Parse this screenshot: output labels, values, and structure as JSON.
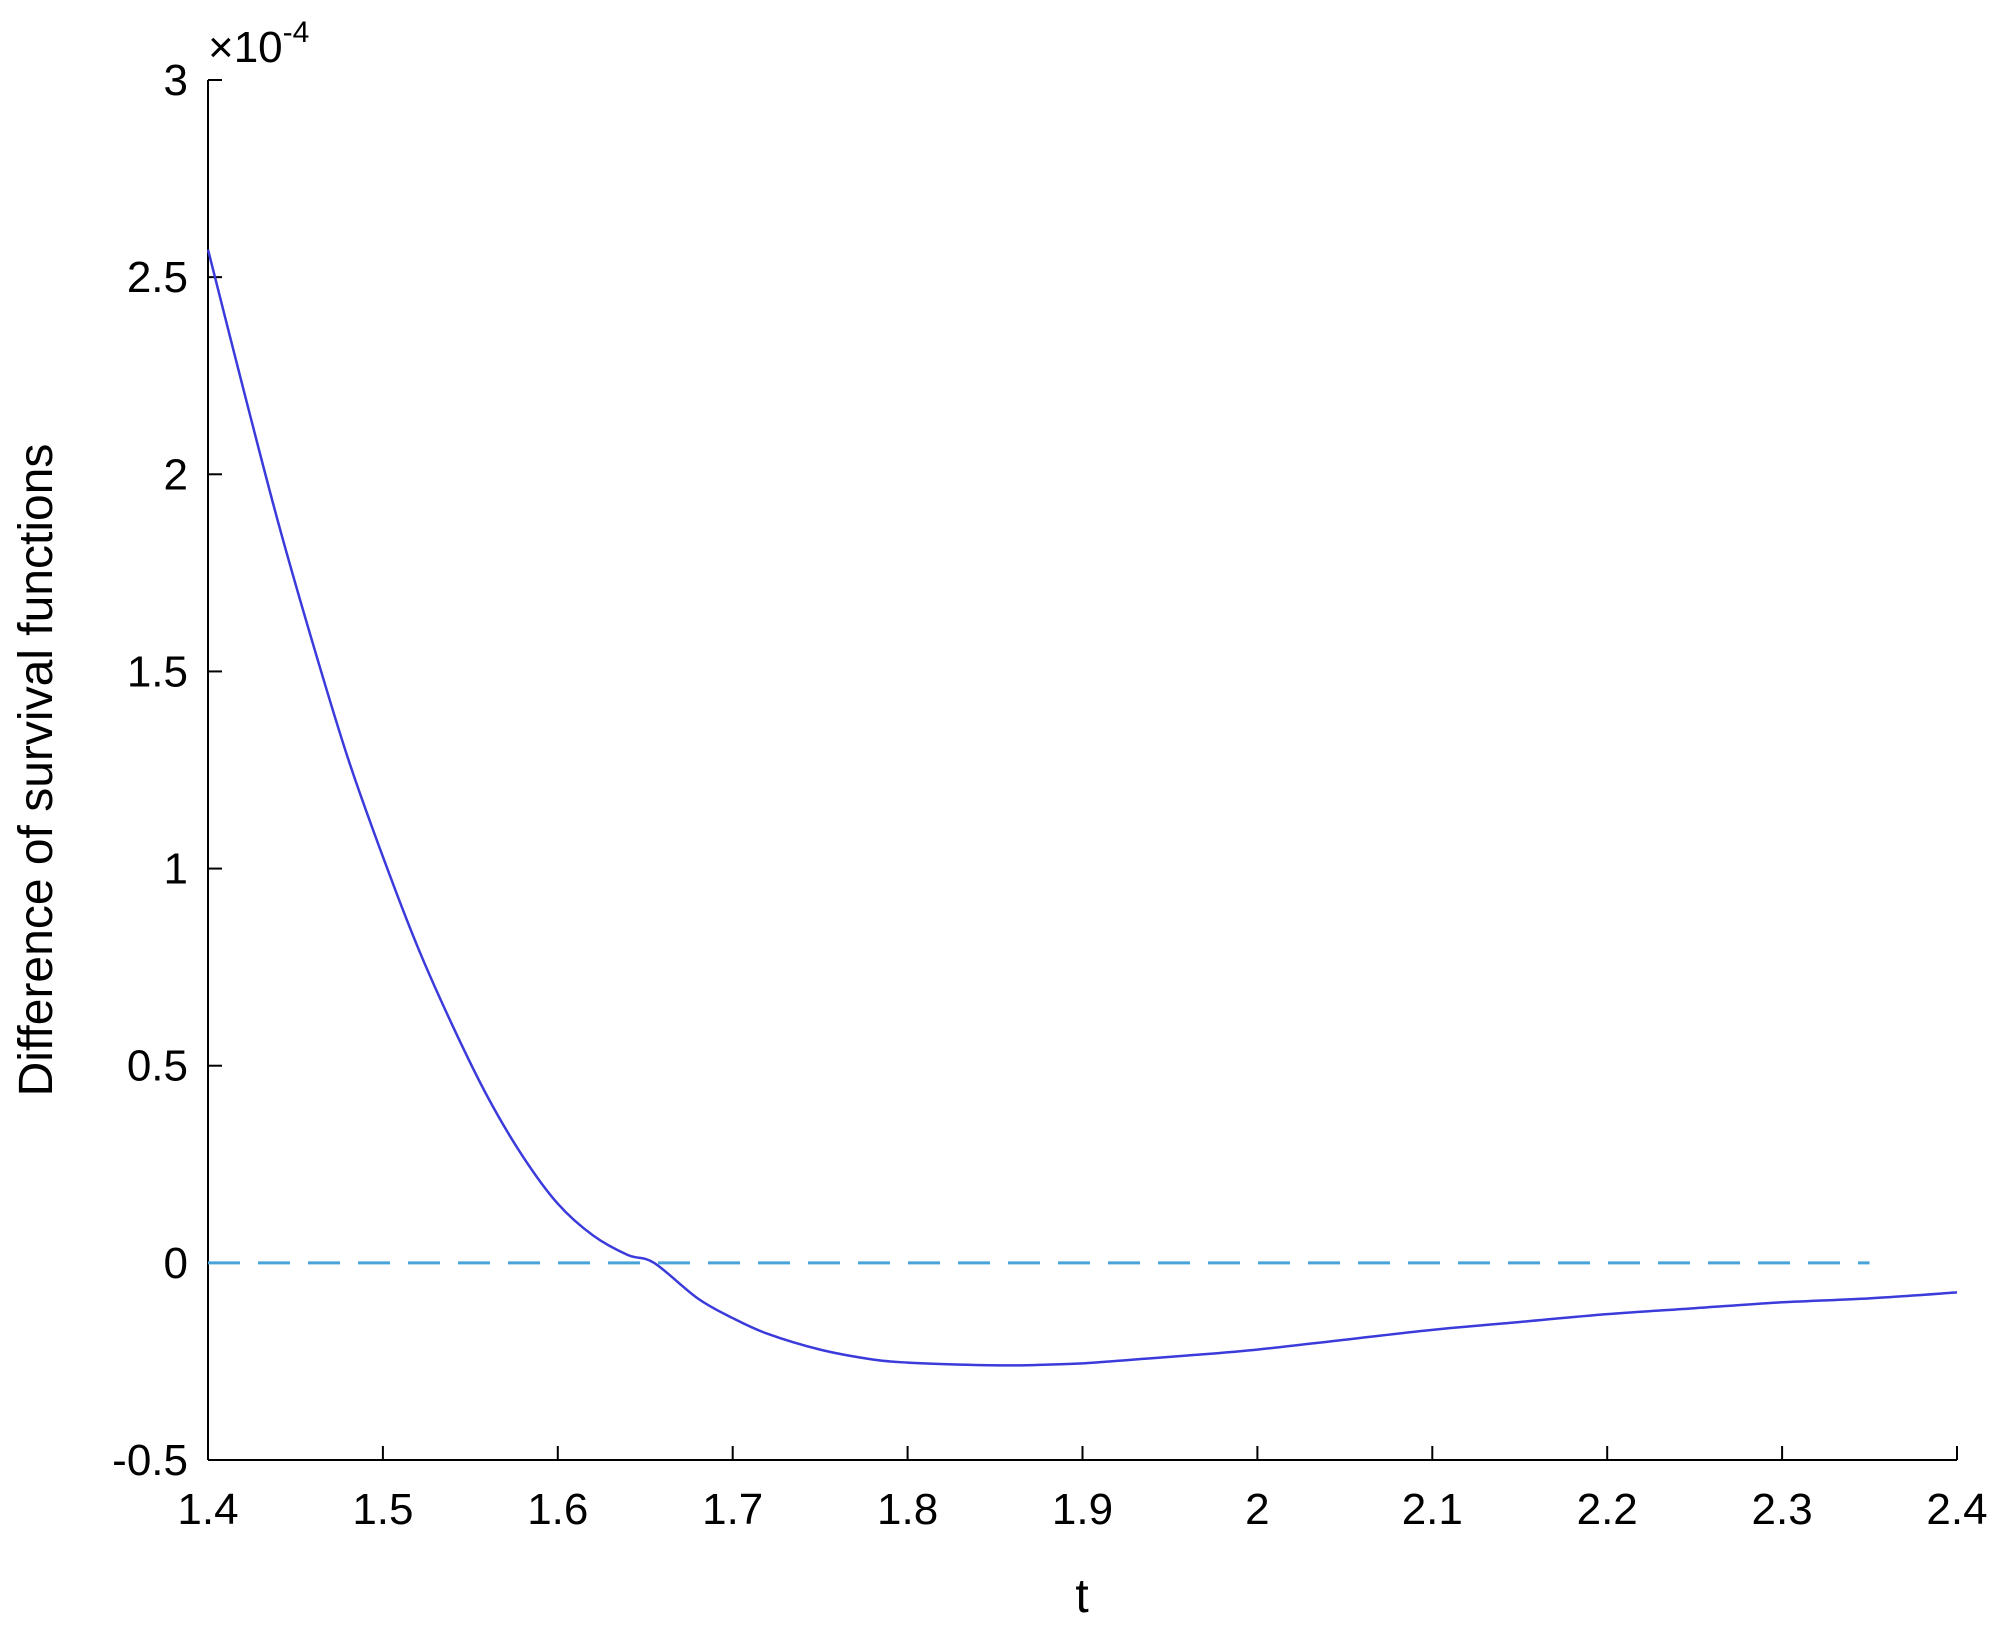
{
  "chart_data": {
    "type": "line",
    "title": "",
    "xlabel": "t",
    "ylabel": "Difference of survival functions",
    "y_multiplier": {
      "base": "×10",
      "exponent": "-4"
    },
    "xlim": [
      1.4,
      2.4
    ],
    "ylim": [
      -0.5,
      3
    ],
    "x_ticks": [
      1.4,
      1.5,
      1.6,
      1.7,
      1.8,
      1.9,
      2.0,
      2.1,
      2.2,
      2.3,
      2.4
    ],
    "x_tick_labels": [
      "1.4",
      "1.5",
      "1.6",
      "1.7",
      "1.8",
      "1.9",
      "2",
      "2.1",
      "2.2",
      "2.3",
      "2.4"
    ],
    "y_ticks": [
      -0.5,
      0,
      0.5,
      1,
      1.5,
      2,
      2.5,
      3
    ],
    "y_tick_labels": [
      "-0.5",
      "0",
      "0.5",
      "1",
      "1.5",
      "2",
      "2.5",
      "3"
    ],
    "grid": false,
    "series": [
      {
        "style": "solid",
        "color": "#3b3bdc",
        "x": [
          1.4,
          1.42,
          1.44,
          1.46,
          1.48,
          1.5,
          1.52,
          1.54,
          1.56,
          1.58,
          1.6,
          1.62,
          1.64,
          1.655,
          1.68,
          1.7,
          1.72,
          1.75,
          1.78,
          1.8,
          1.83,
          1.86,
          1.88,
          1.9,
          1.93,
          1.96,
          2.0,
          2.05,
          2.1,
          2.15,
          2.2,
          2.25,
          2.3,
          2.35,
          2.4
        ],
        "y": [
          2.57,
          2.22,
          1.88,
          1.57,
          1.28,
          1.03,
          0.8,
          0.6,
          0.42,
          0.27,
          0.15,
          0.07,
          0.02,
          0.0,
          -0.09,
          -0.14,
          -0.18,
          -0.22,
          -0.245,
          -0.253,
          -0.258,
          -0.26,
          -0.258,
          -0.255,
          -0.245,
          -0.235,
          -0.22,
          -0.195,
          -0.17,
          -0.15,
          -0.13,
          -0.115,
          -0.1,
          -0.09,
          -0.075
        ]
      },
      {
        "style": "dashed",
        "color": "#4aa3d8",
        "x": [
          1.4,
          2.35
        ],
        "y": [
          0,
          0
        ]
      }
    ]
  }
}
